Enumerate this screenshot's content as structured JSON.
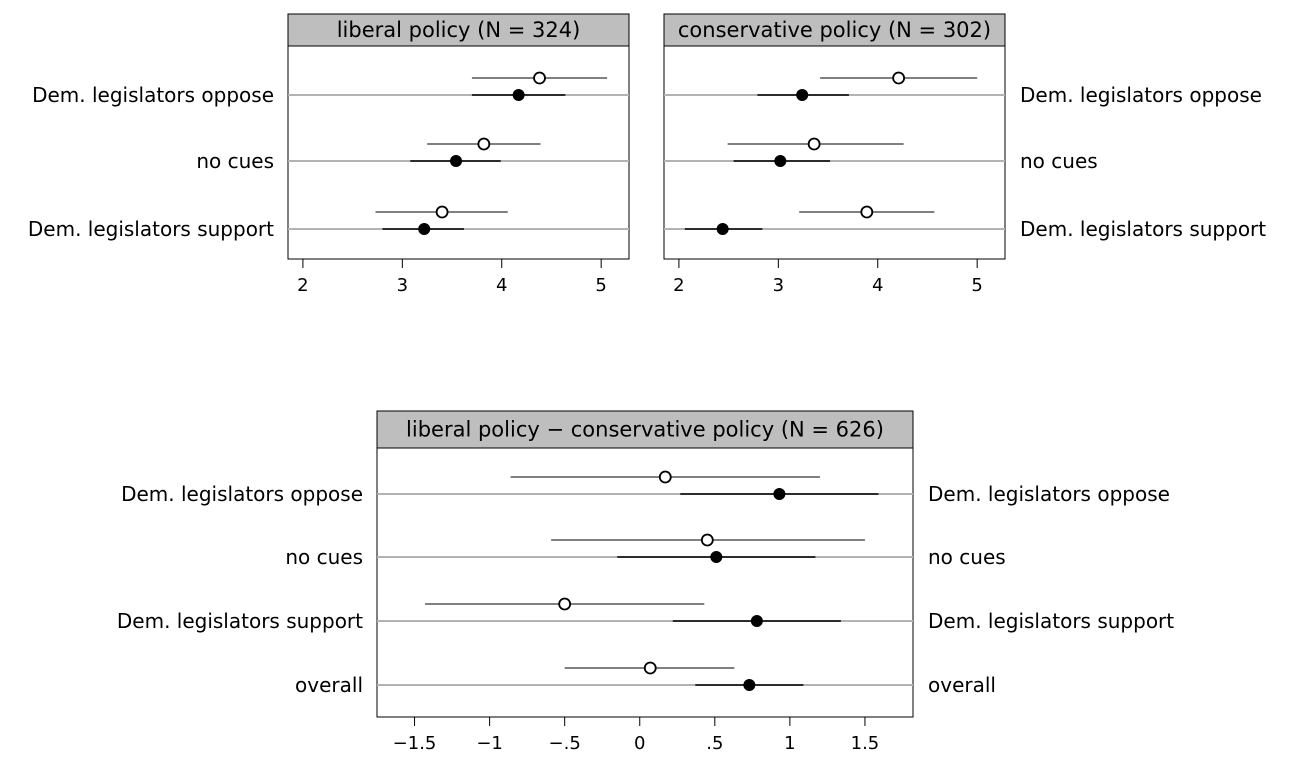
{
  "chart_data": [
    {
      "type": "dot",
      "title": "liberal policy (N = 324)",
      "categories": [
        "Dem. legislators oppose",
        "no cues",
        "Dem. legislators support"
      ],
      "xlim": [
        1.85,
        5.28
      ],
      "xticks": [
        2,
        3,
        4,
        5
      ],
      "xtick_labels": [
        "2",
        "3",
        "4",
        "5"
      ],
      "label_side": "left",
      "series": [
        {
          "marker": "open-circle",
          "points": [
            [
              4.38,
              3.7,
              5.06
            ],
            [
              3.82,
              3.25,
              4.39
            ],
            [
              3.4,
              2.73,
              4.06
            ]
          ]
        },
        {
          "marker": "filled-circle",
          "points": [
            [
              4.17,
              3.7,
              4.64
            ],
            [
              3.54,
              3.08,
              3.99
            ],
            [
              3.22,
              2.8,
              3.62
            ]
          ]
        }
      ]
    },
    {
      "type": "dot",
      "title": "conservative policy (N = 302)",
      "categories": [
        "Dem. legislators oppose",
        "no cues",
        "Dem. legislators support"
      ],
      "xlim": [
        1.85,
        5.28
      ],
      "xticks": [
        2,
        3,
        4,
        5
      ],
      "xtick_labels": [
        "2",
        "3",
        "4",
        "5"
      ],
      "label_side": "right",
      "series": [
        {
          "marker": "open-circle",
          "points": [
            [
              4.21,
              3.42,
              5.0
            ],
            [
              3.36,
              2.49,
              4.26
            ],
            [
              3.89,
              3.21,
              4.57
            ]
          ]
        },
        {
          "marker": "filled-circle",
          "points": [
            [
              3.24,
              2.79,
              3.71
            ],
            [
              3.02,
              2.55,
              3.52
            ],
            [
              2.44,
              2.06,
              2.84
            ]
          ]
        }
      ]
    },
    {
      "type": "dot",
      "title": "liberal policy − conservative policy (N = 626)",
      "categories": [
        "Dem. legislators oppose",
        "no cues",
        "Dem. legislators support",
        "overall"
      ],
      "xlim": [
        -1.75,
        1.82
      ],
      "xticks": [
        -1.5,
        -1,
        -0.5,
        0,
        0.5,
        1,
        1.5
      ],
      "xtick_labels": [
        "−1.5",
        "−1",
        "−.5",
        "0",
        ".5",
        "1",
        "1.5"
      ],
      "label_side": "both",
      "series": [
        {
          "marker": "open-circle",
          "points": [
            [
              0.17,
              -0.86,
              1.2
            ],
            [
              0.45,
              -0.59,
              1.5
            ],
            [
              -0.5,
              -1.43,
              0.43
            ],
            [
              0.07,
              -0.5,
              0.63
            ]
          ]
        },
        {
          "marker": "filled-circle",
          "points": [
            [
              0.93,
              0.27,
              1.59
            ],
            [
              0.51,
              -0.15,
              1.17
            ],
            [
              0.78,
              0.22,
              1.34
            ],
            [
              0.73,
              0.37,
              1.09
            ]
          ]
        }
      ]
    }
  ]
}
